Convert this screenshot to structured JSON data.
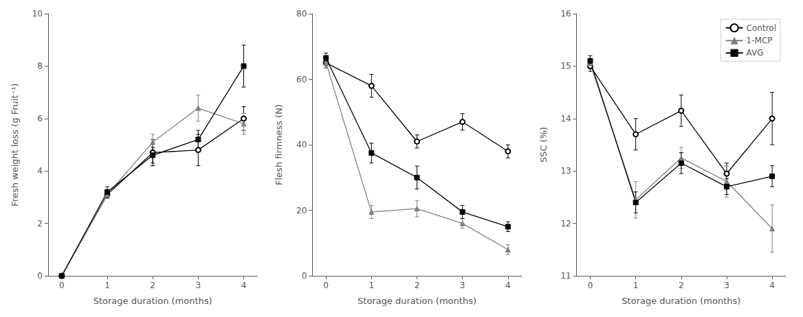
{
  "chart_data": [
    {
      "type": "line",
      "xlabel": "Storage duration (months)",
      "ylabel": "Fresh weight loss (g Fruit⁻¹)",
      "x": [
        0,
        1,
        2,
        3,
        4
      ],
      "xlim": [
        -0.3,
        4.3
      ],
      "xticks": [
        0,
        1,
        2,
        3,
        4
      ],
      "ylim": [
        0,
        10
      ],
      "yticks": [
        0,
        2,
        4,
        6,
        8,
        10
      ],
      "grid": false,
      "series": [
        {
          "name": "Control",
          "color": "black",
          "marker": "emptyCircle",
          "line_style": "solid",
          "values": [
            0.0,
            3.1,
            4.7,
            4.8,
            6.0
          ],
          "errors": [
            0.0,
            0.15,
            0.5,
            0.6,
            0.45
          ]
        },
        {
          "name": "1-MCP",
          "color": "#808080",
          "marker": "triangle",
          "line_style": "solid",
          "values": [
            0.0,
            3.1,
            5.1,
            6.4,
            5.8
          ],
          "errors": [
            0.0,
            0.15,
            0.3,
            0.5,
            0.4
          ]
        },
        {
          "name": "AVG",
          "color": "black",
          "marker": "rect",
          "line_style": "solid",
          "values": [
            0.0,
            3.2,
            4.6,
            5.2,
            8.0
          ],
          "errors": [
            0.0,
            0.2,
            0.3,
            0.35,
            0.8
          ]
        }
      ]
    },
    {
      "type": "line",
      "xlabel": "Storage duration (months)",
      "ylabel": "Flesh firmness (N)",
      "x": [
        0,
        1,
        2,
        3,
        4
      ],
      "xlim": [
        -0.3,
        4.3
      ],
      "xticks": [
        0,
        1,
        2,
        3,
        4
      ],
      "ylim": [
        0,
        80
      ],
      "yticks": [
        0,
        20,
        40,
        60,
        80
      ],
      "grid": false,
      "series": [
        {
          "name": "Control",
          "color": "black",
          "marker": "emptyCircle",
          "line_style": "solid",
          "values": [
            65.0,
            58.0,
            41.0,
            47.0,
            38.0
          ],
          "errors": [
            1.5,
            3.5,
            2.0,
            2.5,
            2.0
          ]
        },
        {
          "name": "1-MCP",
          "color": "#808080",
          "marker": "triangle",
          "line_style": "solid",
          "values": [
            65.0,
            19.5,
            20.5,
            16.0,
            8.0
          ],
          "errors": [
            1.5,
            2.0,
            2.5,
            1.5,
            1.5
          ]
        },
        {
          "name": "AVG",
          "color": "black",
          "marker": "rect",
          "line_style": "solid",
          "values": [
            66.5,
            37.5,
            30.0,
            19.5,
            15.0
          ],
          "errors": [
            1.5,
            3.0,
            3.5,
            2.0,
            1.5
          ]
        }
      ]
    },
    {
      "type": "line",
      "xlabel": "Storage duration (months)",
      "ylabel": "SSC (%)",
      "x": [
        0,
        1,
        2,
        3,
        4
      ],
      "xlim": [
        -0.3,
        4.3
      ],
      "xticks": [
        0,
        1,
        2,
        3,
        4
      ],
      "ylim": [
        11,
        16
      ],
      "yticks": [
        11,
        12,
        13,
        14,
        15,
        16
      ],
      "grid": false,
      "legend": "upper right",
      "series": [
        {
          "name": "Control",
          "color": "black",
          "marker": "emptyCircle",
          "line_style": "solid",
          "values": [
            15.0,
            13.7,
            14.15,
            12.95,
            14.0
          ],
          "errors": [
            0.1,
            0.3,
            0.3,
            0.2,
            0.5
          ]
        },
        {
          "name": "1-MCP",
          "color": "#808080",
          "marker": "triangle",
          "line_style": "solid",
          "values": [
            15.05,
            12.45,
            13.25,
            12.8,
            11.9
          ],
          "errors": [
            0.1,
            0.35,
            0.2,
            0.3,
            0.45
          ]
        },
        {
          "name": "AVG",
          "color": "black",
          "marker": "rect",
          "line_style": "solid",
          "values": [
            15.1,
            12.4,
            13.15,
            12.7,
            12.9
          ],
          "errors": [
            0.1,
            0.2,
            0.2,
            0.15,
            0.2
          ]
        }
      ]
    }
  ]
}
